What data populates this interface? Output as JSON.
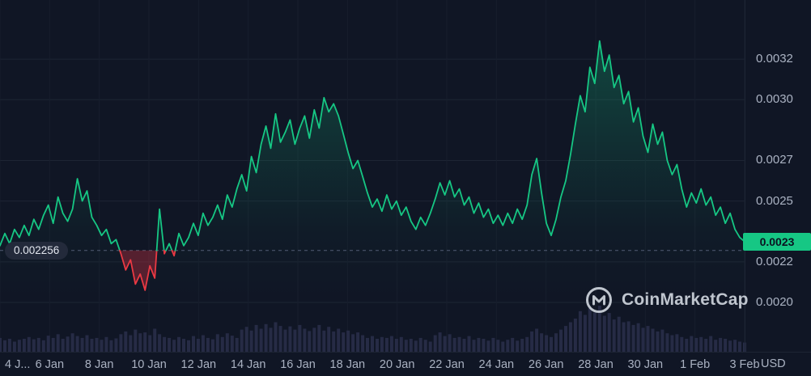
{
  "chart": {
    "unit_label": "USD",
    "watermark_text": "CoinMarketCap",
    "colors": {
      "background": "#101625",
      "up": "#16c784",
      "down": "#ea3943",
      "down_fill": "rgba(234,57,67,0.32)",
      "grid": "#1d2534",
      "grid_vertical": "#171e2d",
      "volume": "#262b45",
      "dashed": "#525d74",
      "badge_text": "#0b1220",
      "axis_text": "#aab2c2",
      "pill_bg": "#232a3b",
      "pill_text": "#e2e6ee",
      "watermark": "#c9cfd8"
    }
  },
  "chart_data": {
    "type": "line",
    "title": "",
    "xlabel": "",
    "ylabel": "USD",
    "grid": true,
    "legend": false,
    "days": 31,
    "points_per_day": 5,
    "price_scale": 0.0001,
    "ylim_x1e4": [
      19.6,
      33.8
    ],
    "x_tick_labels": [
      "4 J...",
      "6 Jan",
      "8 Jan",
      "10 Jan",
      "12 Jan",
      "14 Jan",
      "16 Jan",
      "18 Jan",
      "20 Jan",
      "22 Jan",
      "24 Jan",
      "26 Jan",
      "28 Jan",
      "30 Jan",
      "1 Feb",
      "3 Feb"
    ],
    "y_ticks": [
      {
        "label": "0.0032",
        "value_x1e4": 32
      },
      {
        "label": "0.0030",
        "value_x1e4": 30
      },
      {
        "label": "0.0027",
        "value_x1e4": 27
      },
      {
        "label": "0.0025",
        "value_x1e4": 25
      },
      {
        "label": "0.0022",
        "value_x1e4": 22
      },
      {
        "label": "0.0020",
        "value_x1e4": 20
      }
    ],
    "threshold": {
      "label": "0.002256",
      "value_x1e4": 22.56
    },
    "current_price": {
      "label": "0.0023",
      "value_x1e4": 23.0
    },
    "prices_x1e4": [
      22.8,
      23.4,
      22.9,
      23.6,
      23.2,
      23.8,
      23.3,
      24.1,
      23.6,
      24.3,
      24.8,
      23.9,
      25.2,
      24.4,
      24.0,
      24.6,
      26.1,
      25.0,
      25.5,
      24.2,
      23.8,
      23.3,
      23.6,
      22.9,
      23.1,
      22.4,
      21.6,
      22.1,
      20.9,
      21.4,
      20.6,
      21.8,
      21.2,
      24.6,
      22.4,
      22.9,
      22.3,
      23.4,
      22.8,
      23.2,
      23.9,
      23.3,
      24.4,
      23.8,
      24.2,
      24.8,
      24.1,
      25.3,
      24.7,
      25.6,
      26.3,
      25.5,
      27.2,
      26.4,
      27.8,
      28.7,
      27.6,
      29.3,
      27.9,
      28.4,
      29.0,
      27.8,
      28.6,
      29.2,
      28.1,
      29.5,
      28.6,
      30.1,
      29.4,
      29.8,
      29.2,
      28.3,
      27.4,
      26.6,
      27.0,
      26.2,
      25.4,
      24.7,
      25.1,
      24.5,
      25.3,
      24.6,
      25.0,
      24.3,
      24.7,
      24.0,
      23.6,
      24.2,
      23.8,
      24.4,
      25.1,
      25.9,
      25.3,
      26.0,
      25.2,
      25.6,
      24.8,
      25.2,
      24.4,
      24.9,
      24.2,
      24.6,
      23.9,
      24.3,
      23.8,
      24.4,
      23.9,
      24.6,
      24.1,
      24.8,
      26.3,
      27.1,
      25.4,
      23.9,
      23.3,
      24.1,
      25.2,
      26.0,
      27.3,
      28.8,
      30.2,
      29.4,
      31.6,
      30.8,
      32.9,
      31.4,
      32.2,
      30.6,
      31.2,
      29.8,
      30.4,
      28.9,
      29.6,
      28.2,
      27.4,
      28.8,
      27.8,
      28.4,
      27.0,
      26.3,
      26.8,
      25.6,
      24.7,
      25.4,
      24.9,
      25.6,
      24.8,
      25.2,
      24.3,
      24.7,
      23.9,
      24.4,
      23.6,
      23.2,
      23.0
    ],
    "volume_relative": [
      30,
      25,
      28,
      22,
      26,
      28,
      32,
      27,
      30,
      25,
      35,
      30,
      38,
      28,
      33,
      40,
      34,
      30,
      36,
      28,
      30,
      26,
      32,
      25,
      29,
      38,
      44,
      36,
      48,
      40,
      42,
      36,
      50,
      38,
      32,
      30,
      26,
      32,
      28,
      25,
      34,
      28,
      36,
      30,
      27,
      38,
      32,
      40,
      35,
      30,
      48,
      54,
      46,
      58,
      50,
      60,
      52,
      64,
      56,
      48,
      55,
      48,
      58,
      50,
      45,
      52,
      58,
      46,
      54,
      44,
      50,
      42,
      46,
      38,
      42,
      36,
      30,
      34,
      28,
      32,
      30,
      34,
      28,
      32,
      26,
      28,
      24,
      30,
      26,
      22,
      36,
      42,
      34,
      38,
      30,
      32,
      28,
      34,
      26,
      30,
      28,
      24,
      30,
      26,
      22,
      26,
      30,
      24,
      28,
      32,
      44,
      50,
      40,
      36,
      32,
      40,
      48,
      56,
      64,
      72,
      88,
      80,
      95,
      85,
      100,
      78,
      84,
      70,
      76,
      64,
      66,
      58,
      62,
      52,
      56,
      50,
      44,
      48,
      40,
      36,
      38,
      32,
      28,
      34,
      30,
      32,
      28,
      34,
      26,
      30,
      28,
      24,
      26,
      22,
      20
    ]
  }
}
